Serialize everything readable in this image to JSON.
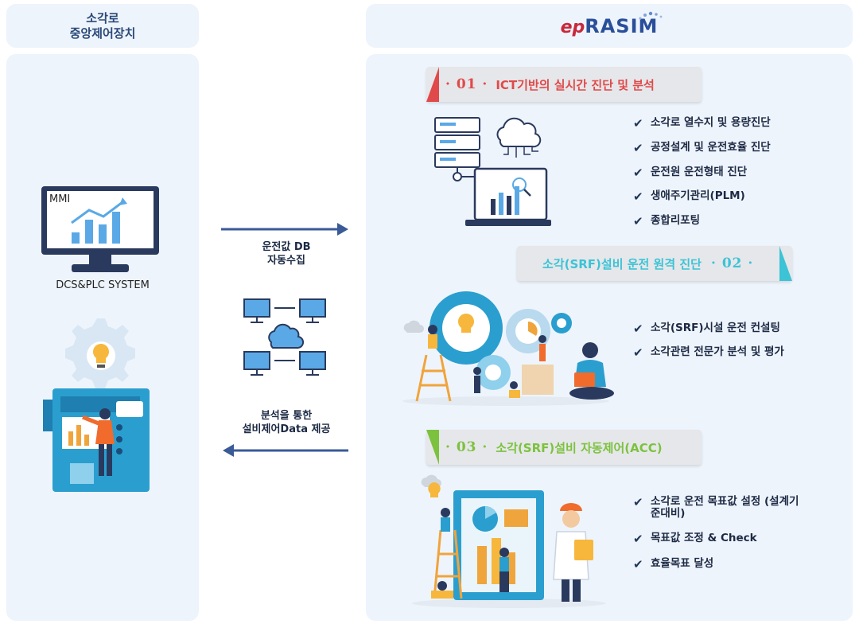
{
  "left_header": {
    "line1": "소각로",
    "line2": "중앙제어장치"
  },
  "right_header": {
    "logo_prefix": "ep",
    "logo_main": "RASIM"
  },
  "left": {
    "mmi_label": "MMI",
    "system_label": "DCS&PLC SYSTEM"
  },
  "middle": {
    "top_arrow_text": [
      "운전값 DB",
      "자동수집"
    ],
    "bottom_arrow_text": [
      "분석을 통한",
      "설비제어Data 제공"
    ]
  },
  "sections": [
    {
      "number": "· 01 ·",
      "title": "ICT기반의 실시간 진단 및 분석",
      "color": "#e04a4a",
      "items": [
        "소각로 열수지 및 용량진단",
        "공정설계 및 운전효율 진단",
        "운전원 운전형태 진단",
        "생애주기관리(PLM)",
        "종합리포팅"
      ]
    },
    {
      "number": "· 02 ·",
      "title": "소각(SRF)설비 운전 원격 진단",
      "color": "#3cc3d6",
      "items": [
        "소각(SRF)시설 운전 컨설팅",
        "소각관련 전문가 분석 및 평가"
      ]
    },
    {
      "number": "· 03 ·",
      "title": "소각(SRF)설비 자동제어(ACC)",
      "color": "#7cc23e",
      "items": [
        "소각로 운전 목표값 설정 (설계기준대비)",
        "목표값 조정 & Check",
        "효율목표 달성"
      ]
    }
  ],
  "check_mark": "✔",
  "colors": {
    "panel_bg": "#eef4fc",
    "arrow": "#3a5a98",
    "monitor": "#2a3a5e",
    "accent_blue": "#5aa9e6"
  }
}
